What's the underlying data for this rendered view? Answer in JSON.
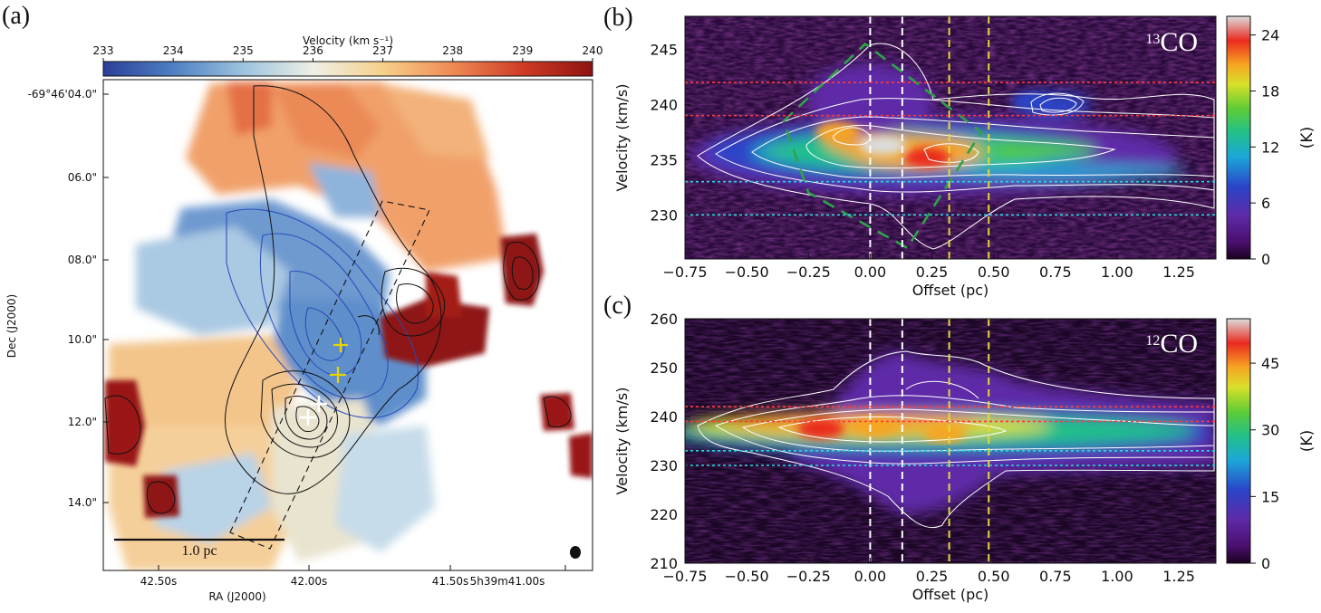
{
  "panels": {
    "a": {
      "label": "(a)",
      "colorbar": {
        "title": "Velocity (km s⁻¹)",
        "ticks": [
          "233",
          "234",
          "235",
          "236",
          "237",
          "238",
          "239",
          "240"
        ],
        "range": [
          233,
          240
        ],
        "stops": [
          "#2b3f9a",
          "#4f7fc2",
          "#9cc3df",
          "#eef0e6",
          "#f7d08a",
          "#ef8a55",
          "#cf3c26",
          "#8e1212"
        ]
      },
      "xlabel": "RA (J2000)",
      "ylabel": "Dec (J2000)",
      "xticks": [
        "42.50s",
        "42.00s",
        "41.50s",
        "5h39m41.00s"
      ],
      "yticks": [
        "-69°46'04.0\"",
        "06.0\"",
        "08.0\"",
        "10.0\"",
        "12.0\"",
        "14.0\""
      ],
      "scalebar_label": "1.0 pc",
      "markers": {
        "yellow_color": "#e8d400",
        "white_color": "#ffffff"
      }
    },
    "b": {
      "label": "(b)",
      "species": "13CO",
      "species_sup": "13",
      "species_main": "CO",
      "colorbar": {
        "ticks": [
          "0",
          "6",
          "12",
          "18",
          "24"
        ],
        "range": [
          0,
          26
        ],
        "unit": "(K)"
      }
    },
    "c": {
      "label": "(c)",
      "species": "12CO",
      "species_sup": "12",
      "species_main": "CO",
      "colorbar": {
        "ticks": [
          "0",
          "15",
          "30",
          "45"
        ],
        "range": [
          0,
          55
        ],
        "unit": "(K)"
      }
    }
  },
  "chart_data": [
    {
      "type": "heatmap",
      "panel": "a",
      "title": "",
      "xlabel": "RA (J2000)",
      "ylabel": "Dec (J2000)",
      "x_tick_labels": [
        "42.50s",
        "42.00s",
        "41.50s",
        "5h39m41.00s"
      ],
      "y_tick_labels": [
        "-69°46'04.0\"",
        "06.0\"",
        "08.0\"",
        "10.0\"",
        "12.0\"",
        "14.0\""
      ],
      "color_quantity": "Velocity (km s⁻¹)",
      "color_range": [
        233,
        240
      ],
      "color_ticks": [
        233,
        234,
        235,
        236,
        237,
        238,
        239,
        240
      ],
      "scalebar": "1.0 pc"
    },
    {
      "type": "heatmap",
      "panel": "b",
      "species": "13CO",
      "xlabel": "Offset (pc)",
      "ylabel": "Velocity (km/s)",
      "xlim": [
        -0.75,
        1.4
      ],
      "ylim": [
        226,
        248
      ],
      "x_ticks": [
        "−0.75",
        "−0.50",
        "−0.25",
        "0.00",
        "0.25",
        "0.50",
        "0.75",
        "1.00",
        "1.25"
      ],
      "x_tick_values": [
        -0.75,
        -0.5,
        -0.25,
        0,
        0.25,
        0.5,
        0.75,
        1.0,
        1.25
      ],
      "y_ticks": [
        "230",
        "235",
        "240",
        "245"
      ],
      "y_tick_values": [
        230,
        235,
        240,
        245
      ],
      "color_unit": "(K)",
      "color_range": [
        0,
        26
      ],
      "color_ticks": [
        0,
        6,
        12,
        18,
        24
      ],
      "vertical_lines": [
        {
          "x": 0.0,
          "color": "#ffffff"
        },
        {
          "x": 0.13,
          "color": "#ffffff"
        },
        {
          "x": 0.32,
          "color": "#e6d93a"
        },
        {
          "x": 0.48,
          "color": "#e6d93a"
        }
      ],
      "horizontal_lines": [
        {
          "y": 242,
          "color": "#ff3b3b"
        },
        {
          "y": 239,
          "color": "#ff3b3b"
        },
        {
          "y": 233,
          "color": "#2fd6e0"
        },
        {
          "y": 230,
          "color": "#2fd6e0"
        }
      ],
      "emission_peaks": [
        {
          "offset": -0.13,
          "velocity": 237.5,
          "intensity": 22
        },
        {
          "offset": 0.05,
          "velocity": 236.3,
          "intensity": 26
        },
        {
          "offset": 0.23,
          "velocity": 235.2,
          "intensity": 25
        },
        {
          "offset": 0.65,
          "velocity": 240.3,
          "intensity": 14
        }
      ],
      "diamond_outline": [
        [
          -0.35,
          238.5
        ],
        [
          -0.02,
          245.5
        ],
        [
          0.45,
          237.5
        ],
        [
          0.15,
          227.0
        ],
        [
          -0.25,
          232.0
        ]
      ]
    },
    {
      "type": "heatmap",
      "panel": "c",
      "species": "12CO",
      "xlabel": "Offset (pc)",
      "ylabel": "Velocity (km/s)",
      "xlim": [
        -0.75,
        1.4
      ],
      "ylim": [
        210,
        260
      ],
      "x_ticks": [
        "−0.75",
        "−0.50",
        "−0.25",
        "0.00",
        "0.25",
        "0.50",
        "0.75",
        "1.00",
        "1.25"
      ],
      "x_tick_values": [
        -0.75,
        -0.5,
        -0.25,
        0,
        0.25,
        0.5,
        0.75,
        1.0,
        1.25
      ],
      "y_ticks": [
        "210",
        "220",
        "230",
        "240",
        "250",
        "260"
      ],
      "y_tick_values": [
        210,
        220,
        230,
        240,
        250,
        260
      ],
      "color_unit": "(K)",
      "color_range": [
        0,
        55
      ],
      "color_ticks": [
        0,
        15,
        30,
        45
      ],
      "vertical_lines": [
        {
          "x": 0.0,
          "color": "#ffffff"
        },
        {
          "x": 0.13,
          "color": "#ffffff"
        },
        {
          "x": 0.32,
          "color": "#e6d93a"
        },
        {
          "x": 0.48,
          "color": "#e6d93a"
        }
      ],
      "horizontal_lines": [
        {
          "y": 242,
          "color": "#ff3b3b"
        },
        {
          "y": 239,
          "color": "#ff3b3b"
        },
        {
          "y": 233,
          "color": "#2fd6e0"
        },
        {
          "y": 230,
          "color": "#2fd6e0"
        }
      ],
      "emission_peaks": [
        {
          "offset": -0.2,
          "velocity": 237.5,
          "intensity": 52
        },
        {
          "offset": 0.02,
          "velocity": 238.0,
          "intensity": 46
        },
        {
          "offset": 0.3,
          "velocity": 236.5,
          "intensity": 40
        }
      ]
    }
  ]
}
